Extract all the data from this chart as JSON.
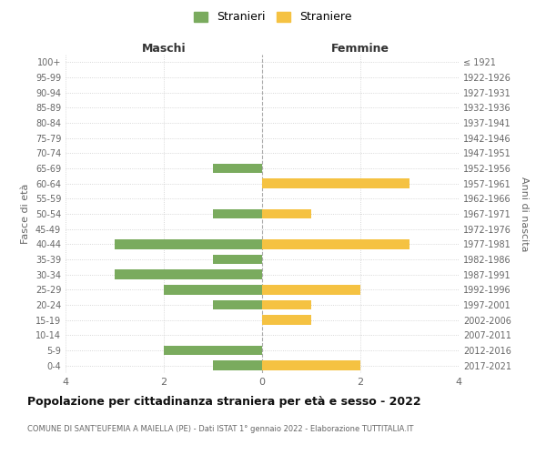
{
  "age_groups": [
    "100+",
    "95-99",
    "90-94",
    "85-89",
    "80-84",
    "75-79",
    "70-74",
    "65-69",
    "60-64",
    "55-59",
    "50-54",
    "45-49",
    "40-44",
    "35-39",
    "30-34",
    "25-29",
    "20-24",
    "15-19",
    "10-14",
    "5-9",
    "0-4"
  ],
  "birth_years": [
    "≤ 1921",
    "1922-1926",
    "1927-1931",
    "1932-1936",
    "1937-1941",
    "1942-1946",
    "1947-1951",
    "1952-1956",
    "1957-1961",
    "1962-1966",
    "1967-1971",
    "1972-1976",
    "1977-1981",
    "1982-1986",
    "1987-1991",
    "1992-1996",
    "1997-2001",
    "2002-2006",
    "2007-2011",
    "2012-2016",
    "2017-2021"
  ],
  "maschi": [
    0,
    0,
    0,
    0,
    0,
    0,
    0,
    1,
    0,
    0,
    1,
    0,
    3,
    1,
    3,
    2,
    1,
    0,
    0,
    2,
    1
  ],
  "femmine": [
    0,
    0,
    0,
    0,
    0,
    0,
    0,
    0,
    3,
    0,
    1,
    0,
    3,
    0,
    0,
    2,
    1,
    1,
    0,
    0,
    2
  ],
  "color_maschi": "#7aab5e",
  "color_femmine": "#f5c242",
  "title_main": "Popolazione per cittadinanza straniera per età e sesso - 2022",
  "title_sub": "COMUNE DI SANT'EUFEMIA A MAIELLA (PE) - Dati ISTAT 1° gennaio 2022 - Elaborazione TUTTITALIA.IT",
  "legend_maschi": "Stranieri",
  "legend_femmine": "Straniere",
  "label_maschi": "Maschi",
  "label_femmine": "Femmine",
  "ylabel_left": "Fasce di età",
  "ylabel_right": "Anni di nascita",
  "xlim": 4,
  "background_color": "#ffffff",
  "grid_color": "#cccccc"
}
